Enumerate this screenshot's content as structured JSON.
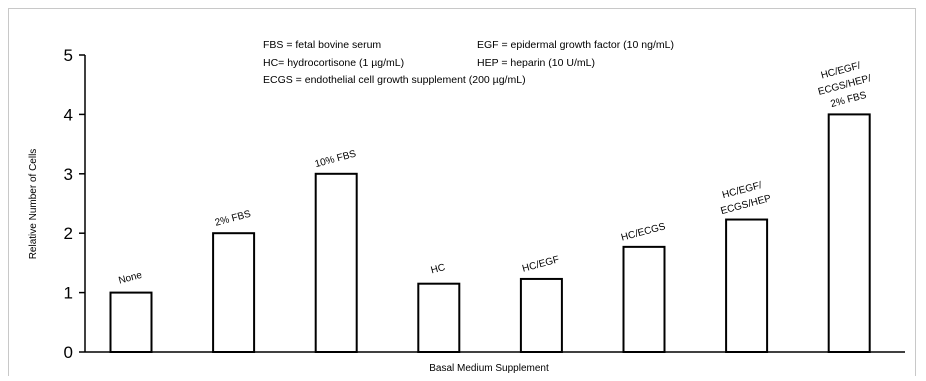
{
  "chart_data": {
    "type": "bar",
    "categories": [
      "None",
      "2% FBS",
      "10% FBS",
      "HC",
      "HC/EGF",
      "HC/ECGS",
      "HC/EGF/\nECGS/HEP",
      "HC/EGF/\nECGS/HEP/\n2% FBS"
    ],
    "values": [
      1.0,
      2.0,
      3.0,
      1.15,
      1.23,
      1.77,
      2.23,
      4.0
    ],
    "xlabel": "Basal Medium Supplement",
    "ylabel": "Relative Number of Cells",
    "ylim": [
      0,
      5
    ],
    "yticks": [
      "0",
      "1",
      "2",
      "3",
      "4",
      "5"
    ],
    "grid": false,
    "legend_notes": [
      "FBS = fetal bovine serum",
      "EGF = epidermal growth factor (10 ng/mL)",
      "HC= hydrocortisone (1 µg/mL)",
      "HEP = heparin (10 U/mL)",
      "ECGS = endothelial cell growth supplement (200 µg/mL)"
    ],
    "bar_fill": "#ffffff",
    "bar_stroke": "#000000"
  }
}
